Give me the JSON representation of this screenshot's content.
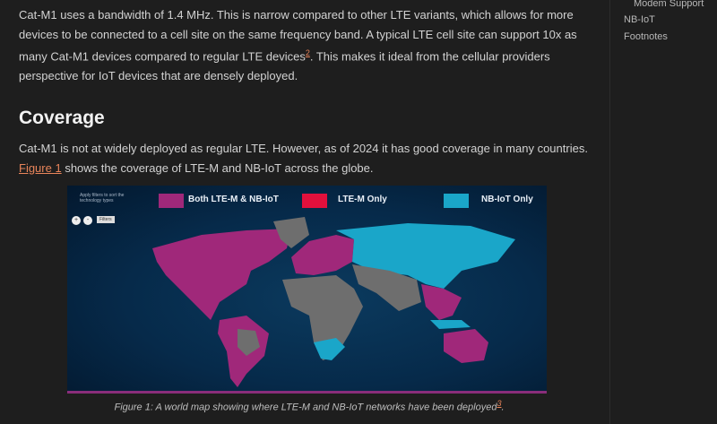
{
  "paragraph1": {
    "text_before": "Cat-M1 uses a bandwidth of 1.4 MHz. This is narrow compared to other LTE variants, which allows for more devices to be connected to a cell site on the same frequency band. A typical LTE cell site can support 10x as many Cat-M1 devices compared to regular LTE devices",
    "footnote": "2",
    "text_after": ". This makes it ideal from the cellular providers perspective for IoT devices that are densely deployed."
  },
  "heading": "Coverage",
  "paragraph2": {
    "text_before": "Cat-M1 is not at widely deployed as regular LTE. However, as of 2024 it has good coverage in many countries. ",
    "link": "Figure 1",
    "text_after": " shows the coverage of LTE-M and NB-IoT across the globe."
  },
  "figure": {
    "note": "Apply filters to sort the technology types",
    "legend": [
      {
        "label": "Both LTE-M & NB-IoT",
        "color": "#a0287a"
      },
      {
        "label": "LTE-M Only",
        "color": "#e2103c"
      },
      {
        "label": "NB-IoT Only",
        "color": "#1aa6c9"
      }
    ],
    "zoom_in": "+",
    "zoom_out": "-",
    "filters_label": "Filters",
    "no_coverage_color": "#6e6e6e"
  },
  "caption": {
    "text": "Figure 1: A world map showing where LTE-M and NB-IoT networks have been deployed",
    "footnote": "3",
    "end": "."
  },
  "toc": {
    "items": [
      "Modem Support",
      "NB-IoT",
      "Footnotes"
    ]
  }
}
